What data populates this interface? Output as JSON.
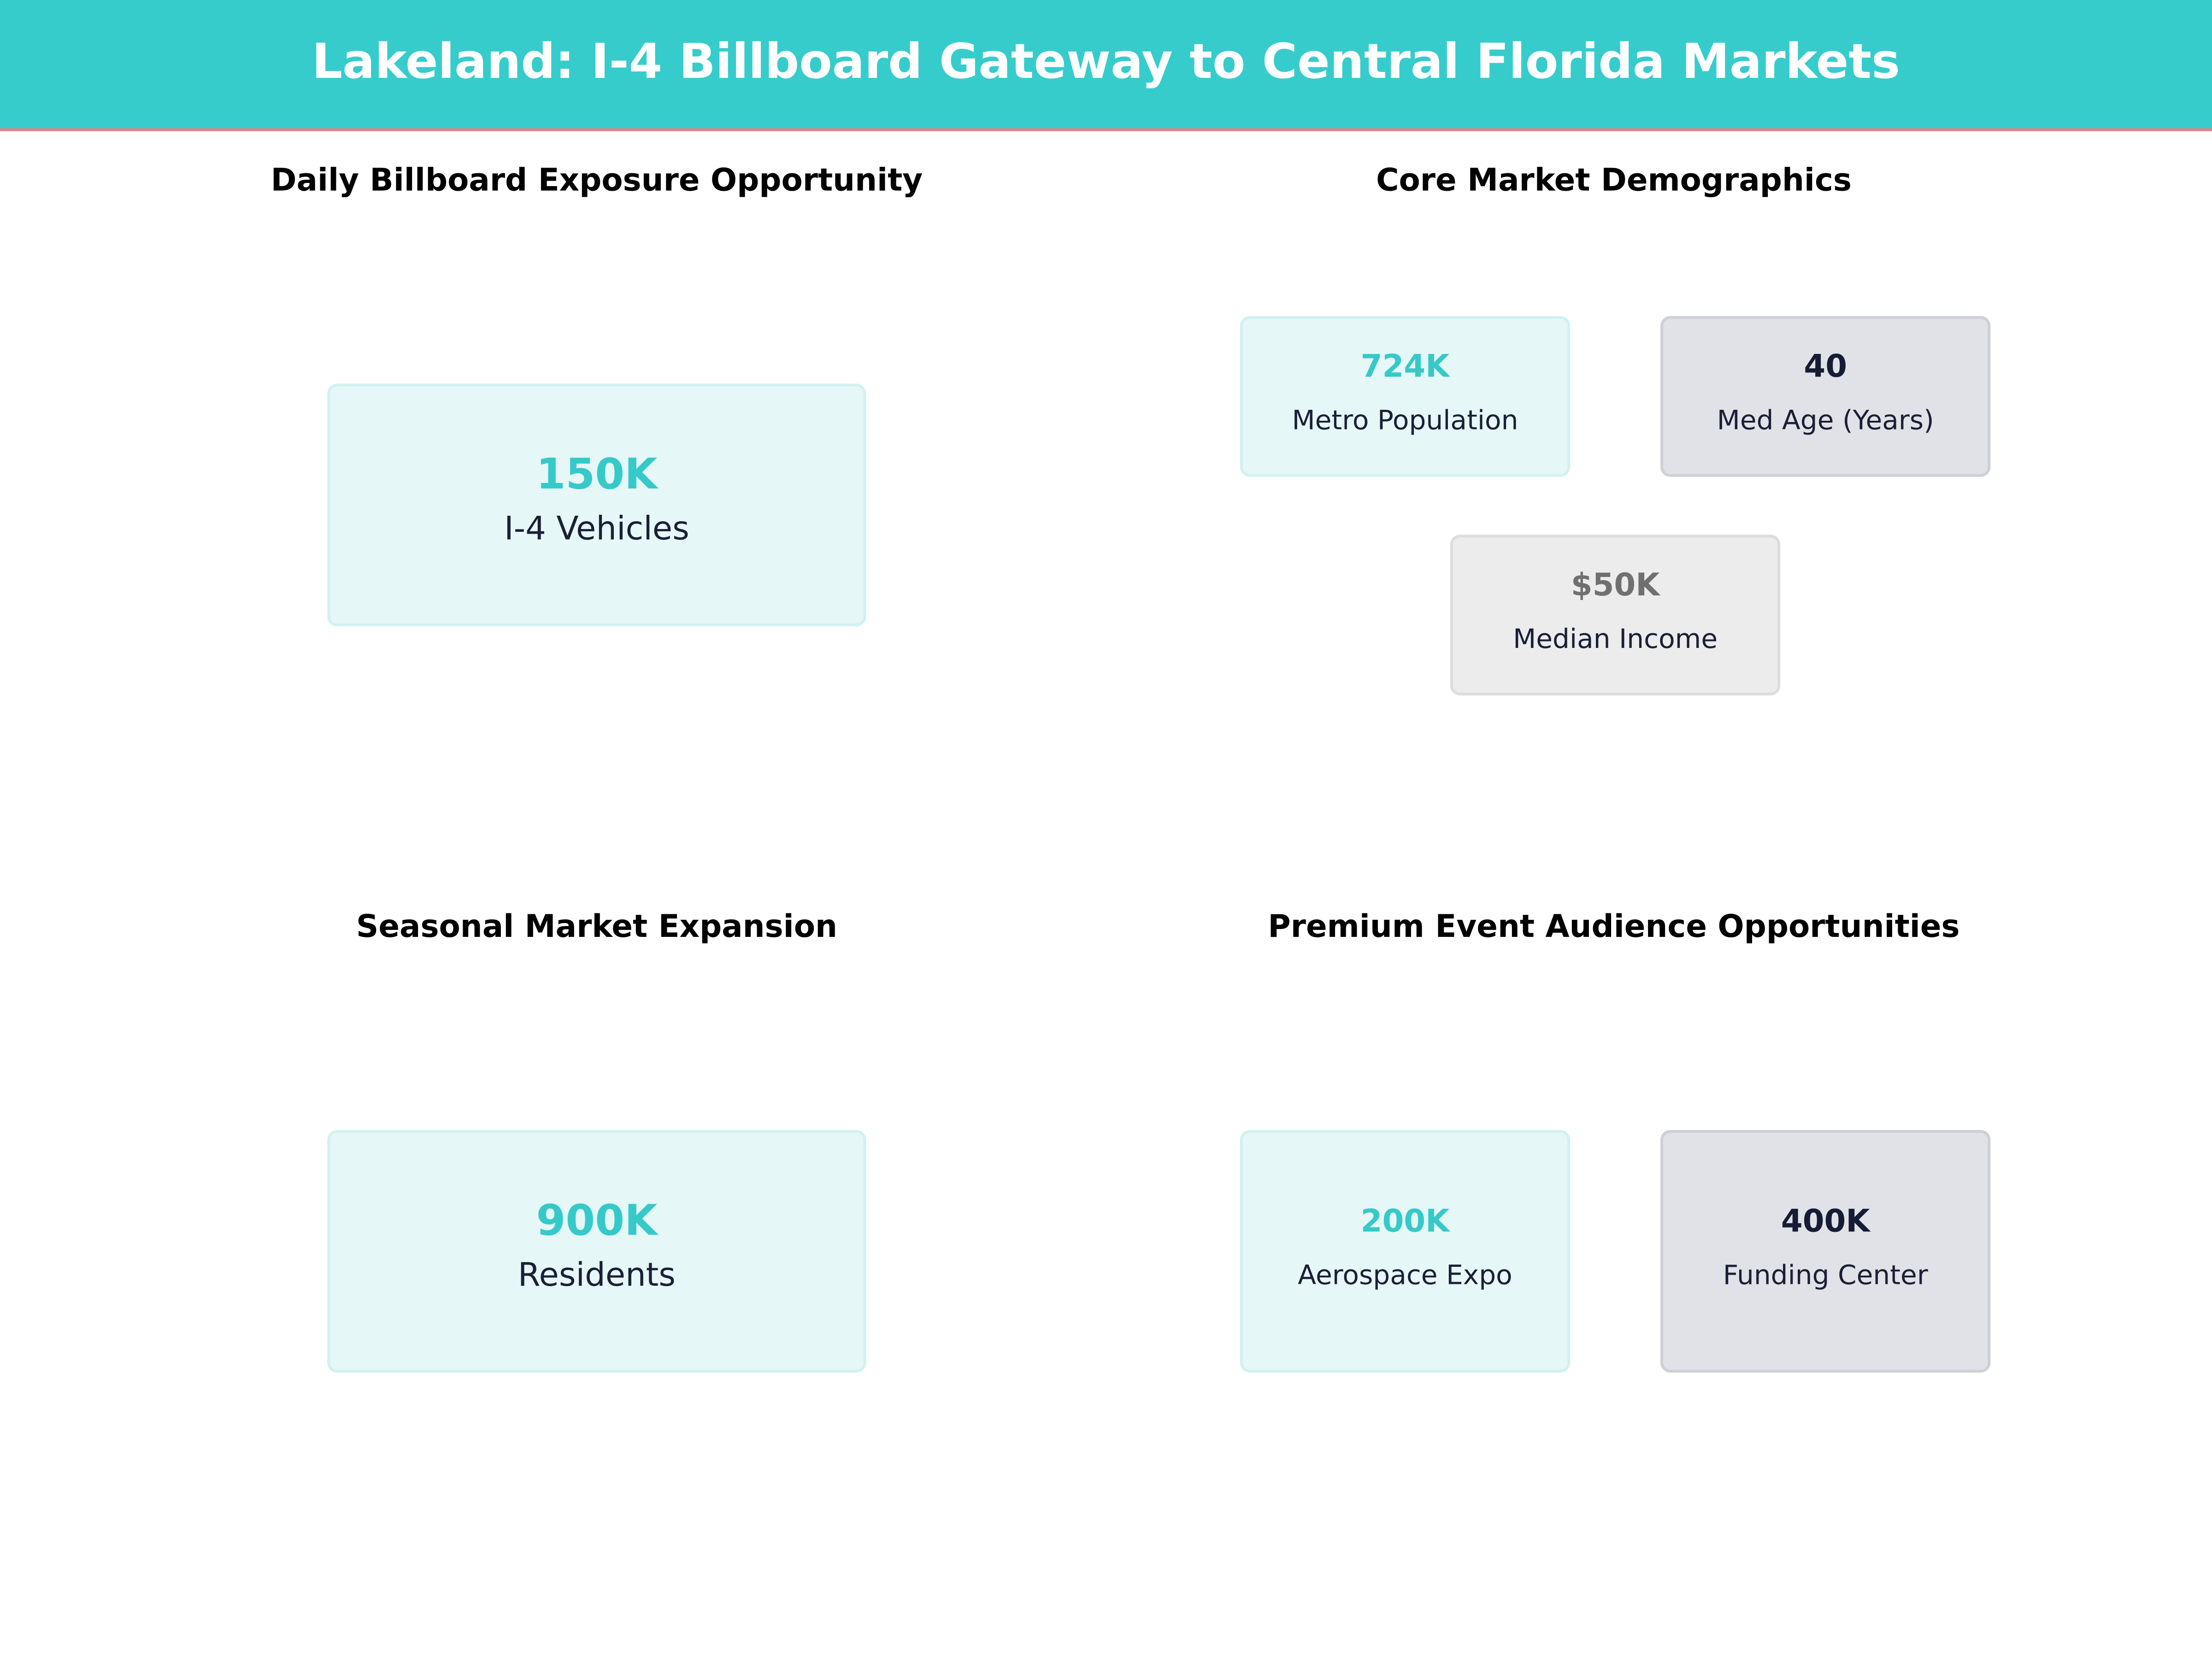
{
  "header": {
    "title": "Lakeland: I-4 Billboard Gateway to Central Florida Markets"
  },
  "panels": [
    {
      "title": "Daily Billboard Exposure Opportunity",
      "cards": [
        {
          "value": "150K",
          "label": "I-4 Vehicles"
        }
      ]
    },
    {
      "title": "Core Market Demographics",
      "cards": [
        {
          "value": "724K",
          "label": "Metro Population"
        },
        {
          "value": "40",
          "label": "Med Age (Years)"
        },
        {
          "value": "$50K",
          "label": "Median Income"
        }
      ]
    },
    {
      "title": "Seasonal Market Expansion",
      "cards": [
        {
          "value": "900K",
          "label": "Residents"
        }
      ]
    },
    {
      "title": "Premium Event Audience Opportunities",
      "cards": [
        {
          "value": "200K",
          "label": "Aerospace Expo"
        },
        {
          "value": "400K",
          "label": "Funding Center"
        }
      ]
    }
  ]
}
